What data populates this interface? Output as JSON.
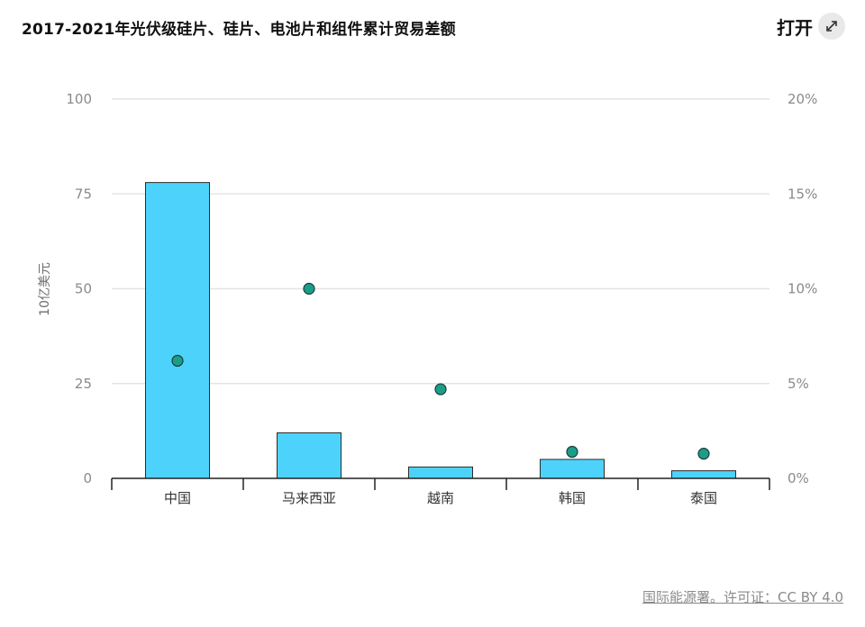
{
  "header": {
    "title": "2017-2021年光伏级硅片、硅片、电池片和组件累计贸易差额",
    "open_label": "打开",
    "open_icon": "expand-icon"
  },
  "footer": {
    "source_text": "国际能源署。许可证：CC BY 4.0"
  },
  "colors": {
    "bar": "#4dd3fb",
    "dot": "#1a9e8a"
  },
  "chart_data": {
    "type": "bar",
    "title": "2017-2021年光伏级硅片、硅片、电池片和组件累计贸易差额",
    "categories": [
      "中国",
      "马来西亚",
      "越南",
      "韩国",
      "泰国"
    ],
    "series": [
      {
        "values": [
          78,
          12,
          3,
          5,
          2
        ],
        "axis": "left",
        "type": "bar"
      },
      {
        "values": [
          6.2,
          10.0,
          4.7,
          1.4,
          1.3
        ],
        "axis": "right",
        "type": "scatter"
      }
    ],
    "ylabel": "10亿美元",
    "ylim": [
      0,
      100
    ],
    "yticks": [
      0,
      25,
      50,
      75,
      100
    ],
    "y2lim": [
      0,
      20
    ],
    "y2ticks": [
      "0%",
      "5%",
      "10%",
      "15%",
      "20%"
    ],
    "grid": true
  }
}
